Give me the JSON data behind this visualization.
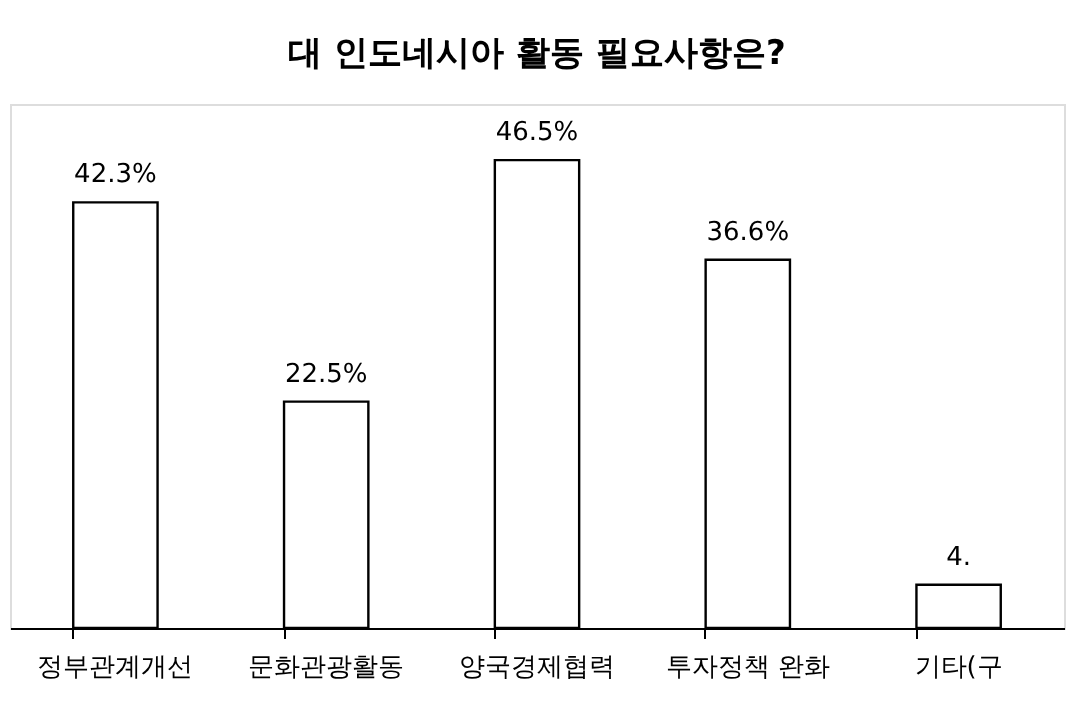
{
  "chart_data": {
    "type": "bar",
    "title": "대 인도네시아 활동 필요사항은?",
    "categories": [
      "정부관계개선",
      "문화관광활동",
      "양국경제협력",
      "투자정책 완화",
      "기타(구"
    ],
    "values": [
      42.3,
      22.5,
      46.5,
      36.6,
      4.3
    ],
    "value_labels": [
      "42.3%",
      "22.5%",
      "46.5%",
      "36.6%",
      "4."
    ],
    "color": "#ffffff",
    "grid": false
  }
}
